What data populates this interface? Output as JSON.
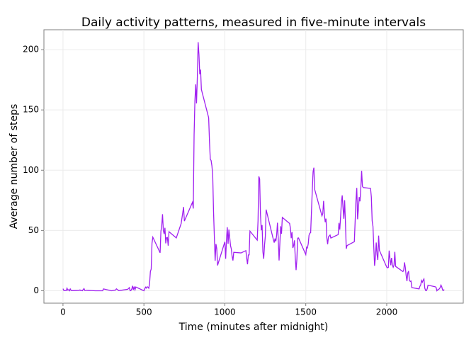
{
  "chart_data": {
    "type": "line",
    "title": "Daily activity patterns, measured in five-minute intervals",
    "x_label": "Time (minutes after midnight)",
    "y_label": "Average number of steps",
    "xlim": [
      -117.75,
      2472.75
    ],
    "ylim": [
      -10.3,
      216.5
    ],
    "xticks": [
      0,
      500,
      1000,
      1500,
      2000
    ],
    "yticks": [
      0,
      50,
      100,
      150,
      200
    ],
    "grid": true,
    "series": [
      {
        "name": "steps",
        "color": "#A020F0",
        "x": [
          0,
          5,
          10,
          15,
          20,
          25,
          30,
          35,
          40,
          45,
          50,
          55,
          100,
          105,
          110,
          115,
          120,
          125,
          130,
          135,
          140,
          145,
          150,
          200,
          230,
          245,
          250,
          300,
          325,
          330,
          345,
          400,
          410,
          415,
          420,
          425,
          430,
          435,
          440,
          445,
          450,
          500,
          510,
          515,
          520,
          525,
          530,
          535,
          540,
          545,
          550,
          555,
          600,
          605,
          610,
          615,
          620,
          625,
          630,
          635,
          640,
          645,
          650,
          655,
          700,
          730,
          745,
          750,
          800,
          805,
          810,
          815,
          820,
          825,
          830,
          835,
          840,
          845,
          850,
          855,
          900,
          905,
          910,
          915,
          920,
          925,
          930,
          935,
          940,
          945,
          950,
          955,
          1000,
          1005,
          1010,
          1015,
          1020,
          1025,
          1030,
          1035,
          1040,
          1045,
          1050,
          1055,
          1100,
          1130,
          1135,
          1140,
          1145,
          1150,
          1155,
          1200,
          1205,
          1210,
          1215,
          1220,
          1225,
          1230,
          1235,
          1240,
          1245,
          1250,
          1255,
          1300,
          1305,
          1310,
          1315,
          1320,
          1325,
          1330,
          1335,
          1340,
          1345,
          1350,
          1355,
          1400,
          1405,
          1410,
          1415,
          1420,
          1425,
          1430,
          1435,
          1440,
          1445,
          1450,
          1455,
          1500,
          1505,
          1510,
          1515,
          1520,
          1525,
          1530,
          1535,
          1540,
          1545,
          1550,
          1555,
          1600,
          1605,
          1610,
          1615,
          1620,
          1625,
          1630,
          1635,
          1640,
          1645,
          1650,
          1655,
          1700,
          1705,
          1710,
          1715,
          1720,
          1725,
          1730,
          1735,
          1740,
          1745,
          1750,
          1755,
          1800,
          1805,
          1810,
          1815,
          1820,
          1825,
          1830,
          1835,
          1840,
          1845,
          1850,
          1855,
          1900,
          1905,
          1910,
          1915,
          1920,
          1925,
          1930,
          1935,
          1940,
          1945,
          1950,
          1955,
          2000,
          2005,
          2010,
          2015,
          2020,
          2025,
          2030,
          2035,
          2040,
          2045,
          2050,
          2055,
          2100,
          2105,
          2110,
          2115,
          2120,
          2125,
          2130,
          2135,
          2140,
          2145,
          2150,
          2155,
          2200,
          2205,
          2210,
          2215,
          2220,
          2225,
          2230,
          2235,
          2240,
          2245,
          2250,
          2255,
          2300,
          2305,
          2310,
          2315,
          2320,
          2325,
          2330,
          2335,
          2340,
          2345,
          2350,
          2355
        ],
        "values": [
          1.7,
          0.3,
          0.1,
          0.2,
          0.1,
          2.1,
          0.5,
          0.9,
          0,
          1.5,
          0.3,
          0.1,
          0.3,
          0.7,
          0.2,
          0.3,
          0,
          1.1,
          1.8,
          0.2,
          0.2,
          0.4,
          0.3,
          0,
          0,
          0,
          1.5,
          0,
          0.6,
          1.6,
          0.1,
          1.2,
          2.6,
          0,
          0.3,
          1.4,
          4.1,
          0.7,
          3.5,
          0.8,
          3.1,
          0,
          3,
          2.2,
          3.3,
          3,
          2.1,
          6,
          16,
          18,
          39.5,
          44.5,
          31.5,
          49.3,
          53.8,
          63.5,
          50,
          47.1,
          52.2,
          39.3,
          44,
          44.2,
          37.4,
          49,
          43.8,
          55.7,
          69.5,
          57.8,
          73.4,
          68.2,
          129.4,
          157.5,
          171.2,
          155.4,
          177.3,
          206.2,
          195.9,
          179.6,
          183.4,
          167,
          143.5,
          124,
          109.1,
          108.1,
          103.7,
          95.9,
          66.2,
          45.2,
          24.8,
          38.8,
          35,
          21,
          40.6,
          26.5,
          42.4,
          52.7,
          38.9,
          50.8,
          44.3,
          37.4,
          34.7,
          28.3,
          25.1,
          31.9,
          31.4,
          33.3,
          27,
          22,
          29.7,
          29.8,
          49.5,
          42,
          58,
          94.8,
          92.8,
          63.4,
          50.2,
          54.5,
          32.4,
          26.5,
          37.7,
          45.1,
          67.3,
          42.3,
          39.9,
          43.3,
          41,
          46.2,
          56.4,
          42.8,
          25.1,
          39.9,
          53.5,
          47.3,
          60.8,
          55.8,
          51.9,
          43.6,
          48.7,
          35.5,
          37.5,
          41.8,
          27.5,
          17.1,
          26.1,
          43.6,
          43.8,
          30,
          36.1,
          35.5,
          38.8,
          46,
          47.8,
          48.1,
          65.3,
          82.9,
          98.7,
          102.1,
          84,
          62.1,
          64.1,
          74.5,
          63.2,
          56.9,
          59.8,
          43.9,
          38.6,
          44.7,
          45.5,
          46.2,
          43.7,
          46.6,
          56.3,
          50.7,
          61.2,
          73.4,
          79.1,
          68.9,
          59.7,
          75.1,
          56.5,
          34.8,
          37.5,
          40.7,
          58,
          74.7,
          85.3,
          59.3,
          67.8,
          77.7,
          74.2,
          85.3,
          99.5,
          86.6,
          85.6,
          84.9,
          77.8,
          58,
          53.4,
          36.3,
          20.7,
          27.4,
          40,
          30.2,
          25.5,
          45.7,
          33.5,
          19.6,
          19,
          19.3,
          33.3,
          26.8,
          21.2,
          27.3,
          21.3,
          19.5,
          21.3,
          32.3,
          20.2,
          15.9,
          17.2,
          23.5,
          19.2,
          12.5,
          8,
          14.7,
          16.3,
          8.7,
          7.8,
          8.1,
          2.6,
          1.5,
          3.7,
          4.8,
          8.5,
          7.1,
          8.7,
          9.8,
          2.2,
          0.3,
          0.1,
          1.6,
          4.6,
          3.3,
          2.8,
          0,
          0.8,
          1,
          1.6,
          2.6,
          4.7,
          3.3,
          0.6,
          0.2,
          1.1
        ]
      }
    ]
  }
}
